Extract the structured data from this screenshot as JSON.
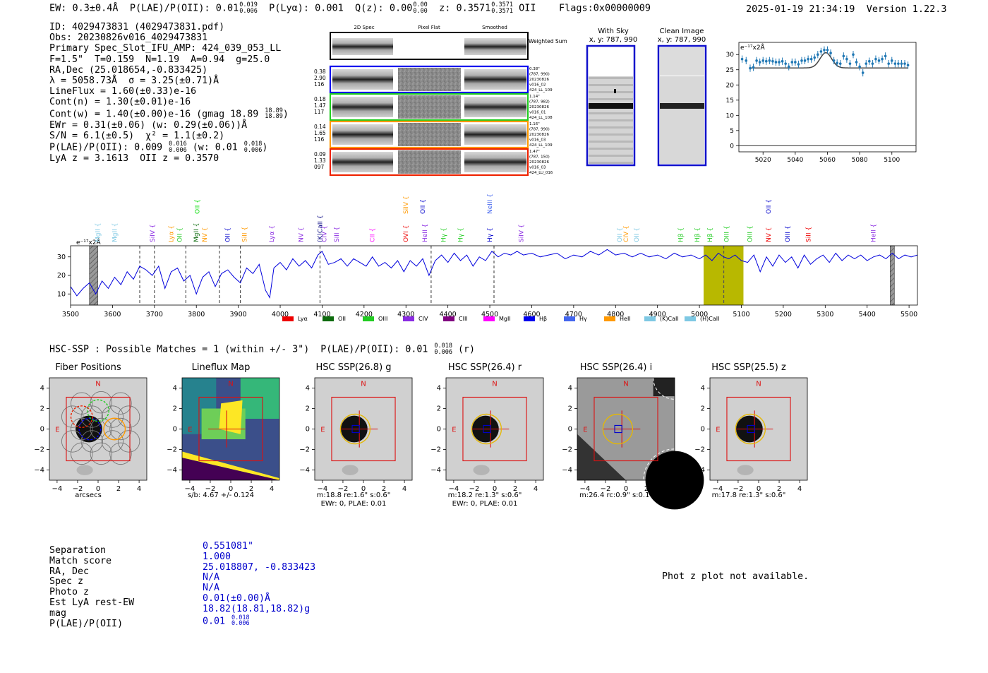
{
  "header": {
    "ew": "EW: 0.3±0.4Å",
    "plae_label": "P(LAE)/P(OII): 0.01",
    "plae_hi": "0.019",
    "plae_lo": "0.006",
    "plya": "P(Lyα): 0.001",
    "qz_label": "Q(z): 0.00",
    "qz_hi": "0.00",
    "qz_lo": "0.00",
    "z_label": "z: 0.3571",
    "z_hi": "0.3571",
    "z_lo": "0.3571",
    "z_line": "OII",
    "flags": "Flags:0x00000009",
    "datetime": "2025-01-19 21:34:19",
    "version": "Version 1.22.3"
  },
  "info": {
    "id": "ID: 4029473831 (4029473831.pdf)",
    "obs": "Obs: 20230826v016_4029473831",
    "primary": "Primary Spec_Slot_IFU_AMP: 424_039_053_LL",
    "params": "F=1.5\"  T=0.159  N=1.19  A=0.94  g=25.0",
    "radec": "RA,Dec (25.018654,-0.833425)",
    "lambda": "λ = 5058.73Å  σ = 3.25(±0.71)Å",
    "lineflux": "LineFlux = 1.60(±0.33)e-16",
    "contn": "Cont(n) = 1.30(±0.01)e-16",
    "contw": "Cont(w) = 1.40(±0.00)e-16 (gmag 18.89",
    "contw_hi": "18.89",
    "contw_lo": "18.89",
    "ewr": "EWr = 0.31(±0.06) (w: 0.29(±0.06))Å",
    "sn": "S/N = 6.1(±0.5)  χ² = 1.1(±0.2)",
    "plae": "P(LAE)/P(OII): 0.009",
    "plae_hi": "0.016",
    "plae_lo": "0.006",
    "plae_w": "(w: 0.01",
    "plae_w_hi": "0.018",
    "plae_w_lo": "0.006",
    "lya": "LyA z = 3.1613  OII z = 0.3570"
  },
  "stamps": {
    "headers": [
      "2D Spec",
      "Pixel Flat",
      "Smoothed"
    ],
    "weighted": "Weighted Sum",
    "rows": [
      {
        "nums": [
          "0.38",
          "2.90",
          "116"
        ],
        "color": "#0000ee",
        "meta": [
          "0.38\"",
          "(787, 990)",
          "20230826",
          "v016_02",
          "424_LL_109"
        ]
      },
      {
        "nums": [
          "0.18",
          "1.47",
          "117"
        ],
        "color": "#22cc22",
        "meta": [
          "1.14\"",
          "(787, 982)",
          "20230826",
          "v016_01",
          "424_LL_108"
        ]
      },
      {
        "nums": [
          "0.14",
          "1.65",
          "116"
        ],
        "color": "#ff9900",
        "meta": [
          "1.16\"",
          "(787, 990)",
          "20230826",
          "v016_03",
          "424_LL_109"
        ]
      },
      {
        "nums": [
          "0.09",
          "1.33",
          "097"
        ],
        "color": "#ee2200",
        "meta": [
          "1.47\"",
          "(787, 150)",
          "20230826",
          "v016_03",
          "424_LU_016"
        ]
      }
    ]
  },
  "fiber_panels": {
    "with_sky": "With Sky",
    "clean": "Clean Image",
    "coords": "x, y: 787, 990"
  },
  "zoom_chart": {
    "type": "scatter",
    "ylabel": "e⁻¹⁷x2Å",
    "xlim": [
      5005,
      5115
    ],
    "ylim": [
      -2,
      34
    ],
    "xticks": [
      5020,
      5040,
      5060,
      5080,
      5100
    ],
    "yticks": [
      0,
      5,
      10,
      15,
      20,
      25,
      30
    ],
    "points": [
      [
        5007,
        28.5
      ],
      [
        5009.5,
        28
      ],
      [
        5012,
        25.5
      ],
      [
        5014,
        25.8
      ],
      [
        5016,
        28
      ],
      [
        5018,
        27.5
      ],
      [
        5020,
        28
      ],
      [
        5022,
        27.8
      ],
      [
        5024,
        28
      ],
      [
        5026,
        27.8
      ],
      [
        5028,
        27.5
      ],
      [
        5030,
        27.5
      ],
      [
        5032,
        27.8
      ],
      [
        5034,
        27
      ],
      [
        5036,
        26
      ],
      [
        5038,
        27.5
      ],
      [
        5040,
        27.5
      ],
      [
        5042,
        26.8
      ],
      [
        5044,
        28
      ],
      [
        5046,
        28
      ],
      [
        5048,
        28.5
      ],
      [
        5050,
        28.5
      ],
      [
        5052,
        29
      ],
      [
        5054,
        30
      ],
      [
        5056,
        31
      ],
      [
        5058,
        31.5
      ],
      [
        5060,
        31.5
      ],
      [
        5062,
        30.5
      ],
      [
        5064,
        28
      ],
      [
        5066,
        27.2
      ],
      [
        5068,
        27
      ],
      [
        5070,
        29.5
      ],
      [
        5072,
        28.5
      ],
      [
        5074,
        27
      ],
      [
        5076,
        30
      ],
      [
        5078,
        27.5
      ],
      [
        5080,
        26
      ],
      [
        5082,
        24
      ],
      [
        5084,
        27
      ],
      [
        5086,
        27.8
      ],
      [
        5088,
        27
      ],
      [
        5090,
        28.5
      ],
      [
        5092,
        28
      ],
      [
        5094,
        28.5
      ],
      [
        5096,
        29.5
      ],
      [
        5098,
        27
      ],
      [
        5100,
        28
      ],
      [
        5102,
        27
      ],
      [
        5104,
        27
      ],
      [
        5106,
        27
      ],
      [
        5108,
        27
      ],
      [
        5110,
        26.5
      ]
    ],
    "fit": {
      "continuum": 25.6,
      "peak": 30.6,
      "center": 5059,
      "sigma": 3.6
    }
  },
  "main_chart": {
    "type": "line",
    "ylabel": "e⁻¹⁷x2Å",
    "xlim": [
      3500,
      5520
    ],
    "ylim": [
      4,
      36
    ],
    "xticks": [
      3500,
      3600,
      3700,
      3800,
      3900,
      4000,
      4100,
      4200,
      4300,
      4400,
      4500,
      4600,
      4700,
      4800,
      4900,
      5000,
      5100,
      5200,
      5300,
      5400,
      5500
    ],
    "yticks": [
      10,
      20,
      30
    ],
    "spectrum": [
      [
        3500,
        14
      ],
      [
        3515,
        9
      ],
      [
        3530,
        13
      ],
      [
        3545,
        16
      ],
      [
        3560,
        10
      ],
      [
        3575,
        17
      ],
      [
        3590,
        13
      ],
      [
        3605,
        19
      ],
      [
        3620,
        15
      ],
      [
        3635,
        22
      ],
      [
        3650,
        18
      ],
      [
        3665,
        25
      ],
      [
        3680,
        23
      ],
      [
        3695,
        20
      ],
      [
        3710,
        25
      ],
      [
        3725,
        13
      ],
      [
        3740,
        22
      ],
      [
        3755,
        24
      ],
      [
        3770,
        17
      ],
      [
        3785,
        20
      ],
      [
        3800,
        10
      ],
      [
        3815,
        19
      ],
      [
        3830,
        22
      ],
      [
        3845,
        14
      ],
      [
        3860,
        21
      ],
      [
        3875,
        23
      ],
      [
        3890,
        19
      ],
      [
        3905,
        16
      ],
      [
        3920,
        24
      ],
      [
        3935,
        21
      ],
      [
        3950,
        26
      ],
      [
        3965,
        12
      ],
      [
        3975,
        8
      ],
      [
        3985,
        24
      ],
      [
        4000,
        27
      ],
      [
        4015,
        23
      ],
      [
        4030,
        29
      ],
      [
        4045,
        25
      ],
      [
        4060,
        28
      ],
      [
        4075,
        24
      ],
      [
        4090,
        31
      ],
      [
        4100,
        33
      ],
      [
        4115,
        26
      ],
      [
        4130,
        27
      ],
      [
        4145,
        29
      ],
      [
        4160,
        25
      ],
      [
        4175,
        29
      ],
      [
        4190,
        27
      ],
      [
        4205,
        25
      ],
      [
        4220,
        30
      ],
      [
        4235,
        25
      ],
      [
        4250,
        27
      ],
      [
        4265,
        24
      ],
      [
        4280,
        28
      ],
      [
        4295,
        22
      ],
      [
        4310,
        28
      ],
      [
        4325,
        25
      ],
      [
        4340,
        29
      ],
      [
        4355,
        20
      ],
      [
        4370,
        28
      ],
      [
        4385,
        31
      ],
      [
        4400,
        27
      ],
      [
        4415,
        32
      ],
      [
        4430,
        28
      ],
      [
        4445,
        31
      ],
      [
        4460,
        25
      ],
      [
        4475,
        30
      ],
      [
        4490,
        28
      ],
      [
        4505,
        33
      ],
      [
        4520,
        30
      ],
      [
        4535,
        32
      ],
      [
        4550,
        31
      ],
      [
        4565,
        33
      ],
      [
        4580,
        31
      ],
      [
        4600,
        32
      ],
      [
        4620,
        30
      ],
      [
        4640,
        31
      ],
      [
        4660,
        32
      ],
      [
        4680,
        29
      ],
      [
        4700,
        31
      ],
      [
        4720,
        30
      ],
      [
        4740,
        33
      ],
      [
        4760,
        31
      ],
      [
        4780,
        34
      ],
      [
        4800,
        31
      ],
      [
        4820,
        32
      ],
      [
        4840,
        30
      ],
      [
        4860,
        32
      ],
      [
        4880,
        30
      ],
      [
        4900,
        31
      ],
      [
        4920,
        29
      ],
      [
        4940,
        32
      ],
      [
        4960,
        30
      ],
      [
        4980,
        31
      ],
      [
        5000,
        29
      ],
      [
        5015,
        31
      ],
      [
        5030,
        28
      ],
      [
        5045,
        32
      ],
      [
        5058,
        30
      ],
      [
        5070,
        29
      ],
      [
        5085,
        31
      ],
      [
        5100,
        28
      ],
      [
        5115,
        27
      ],
      [
        5130,
        31
      ],
      [
        5145,
        22
      ],
      [
        5160,
        30
      ],
      [
        5175,
        25
      ],
      [
        5190,
        31
      ],
      [
        5205,
        27
      ],
      [
        5220,
        30
      ],
      [
        5235,
        24
      ],
      [
        5250,
        31
      ],
      [
        5265,
        26
      ],
      [
        5280,
        29
      ],
      [
        5295,
        31
      ],
      [
        5310,
        27
      ],
      [
        5325,
        32
      ],
      [
        5340,
        28
      ],
      [
        5355,
        31
      ],
      [
        5370,
        29
      ],
      [
        5385,
        31
      ],
      [
        5400,
        28
      ],
      [
        5415,
        30
      ],
      [
        5430,
        31
      ],
      [
        5445,
        29
      ],
      [
        5460,
        32
      ],
      [
        5475,
        29
      ],
      [
        5490,
        31
      ],
      [
        5505,
        30
      ],
      [
        5520,
        31
      ]
    ],
    "hatched": [
      [
        3545,
        3565
      ],
      [
        5455,
        5465
      ]
    ],
    "highlight": [
      5010,
      5105
    ],
    "dashed": [
      3665,
      3700,
      3775,
      3855,
      3905,
      4095,
      4360,
      4510,
      5058
    ],
    "lines": [
      {
        "label": "MgII",
        "x": 3570,
        "color": "#7ec8e3",
        "row": 3
      },
      {
        "label": "MgII",
        "x": 3610,
        "color": "#7ec8e3",
        "row": 3
      },
      {
        "label": "SiIV",
        "x": 3700,
        "color": "#8a2be2",
        "row": 3
      },
      {
        "label": "Lyα",
        "x": 3745,
        "color": "#ff9900",
        "row": 3
      },
      {
        "label": "OII",
        "x": 3765,
        "color": "#22cc22",
        "row": 3
      },
      {
        "label": "MgII",
        "x": 3805,
        "color": "#0d6b0d",
        "row": 3
      },
      {
        "label": "OII",
        "x": 3807,
        "color": "#00dd00",
        "row": 0
      },
      {
        "label": "NV",
        "x": 3825,
        "color": "#ff9900",
        "row": 3
      },
      {
        "label": "OII",
        "x": 3880,
        "color": "#0000cc",
        "row": 3
      },
      {
        "label": "SiII",
        "x": 3920,
        "color": "#ff9900",
        "row": 3
      },
      {
        "label": "Lyα",
        "x": 3985,
        "color": "#8a2be2",
        "row": 3
      },
      {
        "label": "NV",
        "x": 4055,
        "color": "#8a2be2",
        "row": 3
      },
      {
        "label": "(K)CaII",
        "x": 4100,
        "color": "#000080",
        "row": 3
      },
      {
        "label": "CIV",
        "x": 4110,
        "color": "#8a2be2",
        "row": 3
      },
      {
        "label": "SiII",
        "x": 4140,
        "color": "#8a2be2",
        "row": 3
      },
      {
        "label": "CII",
        "x": 4225,
        "color": "#ff00ff",
        "row": 3
      },
      {
        "label": "OVI",
        "x": 4305,
        "color": "#ee0000",
        "row": 3
      },
      {
        "label": "SiIV",
        "x": 4305,
        "color": "#ff9900",
        "row": 0
      },
      {
        "label": "HeII",
        "x": 4350,
        "color": "#8a2be2",
        "row": 3
      },
      {
        "label": "OII",
        "x": 4345,
        "color": "#0000cc",
        "row": 0
      },
      {
        "label": "Hγ",
        "x": 4395,
        "color": "#22cc22",
        "row": 3
      },
      {
        "label": "Hγ",
        "x": 4435,
        "color": "#22cc22",
        "row": 3
      },
      {
        "label": "NeIII",
        "x": 4505,
        "color": "#4466ee",
        "row": 0
      },
      {
        "label": "Hγ",
        "x": 4505,
        "color": "#0000cc",
        "row": 3
      },
      {
        "label": "SiIV",
        "x": 4580,
        "color": "#8a2be2",
        "row": 3
      },
      {
        "label": "OII",
        "x": 4815,
        "color": "#7ec8e3",
        "row": 3
      },
      {
        "label": "CIV",
        "x": 4830,
        "color": "#ff9900",
        "row": 3
      },
      {
        "label": "OII",
        "x": 4855,
        "color": "#7ec8e3",
        "row": 3
      },
      {
        "label": "Hβ",
        "x": 4960,
        "color": "#22cc22",
        "row": 3
      },
      {
        "label": "Hβ",
        "x": 5000,
        "color": "#22cc22",
        "row": 3
      },
      {
        "label": "Hβ",
        "x": 5030,
        "color": "#22cc22",
        "row": 3
      },
      {
        "label": "OIII",
        "x": 5070,
        "color": "#22cc22",
        "row": 3
      },
      {
        "label": "OIII",
        "x": 5125,
        "color": "#22cc22",
        "row": 3
      },
      {
        "label": "NV",
        "x": 5170,
        "color": "#ee0000",
        "row": 3
      },
      {
        "label": "OII",
        "x": 5170,
        "color": "#0000cc",
        "row": 0
      },
      {
        "label": "OIII",
        "x": 5215,
        "color": "#0000cc",
        "row": 3
      },
      {
        "label": "SiII",
        "x": 5265,
        "color": "#ee0000",
        "row": 3
      },
      {
        "label": "HeII",
        "x": 5420,
        "color": "#8a2be2",
        "row": 3
      }
    ],
    "legend": [
      {
        "label": "Lyα",
        "color": "#ee0000"
      },
      {
        "label": "OII",
        "color": "#0d6b0d"
      },
      {
        "label": "OIII",
        "color": "#22cc22"
      },
      {
        "label": "CIV",
        "color": "#8a2be2"
      },
      {
        "label": "CIII",
        "color": "#800080"
      },
      {
        "label": "MgII",
        "color": "#ff00ff"
      },
      {
        "label": "Hβ",
        "color": "#0000ee"
      },
      {
        "label": "Hγ",
        "color": "#4466ee"
      },
      {
        "label": "HeII",
        "color": "#ff9900"
      },
      {
        "label": "(K)CaII",
        "color": "#7ec8e3"
      },
      {
        "label": "(H)CaII",
        "color": "#7ec8e3"
      }
    ]
  },
  "hsc": {
    "summary": "HSC-SSP : Possible Matches = 1 (within +/- 3\")  P(LAE)/P(OII): 0.01",
    "summary_hi": "0.018",
    "summary_lo": "0.006",
    "summary_tail": "(r)",
    "panels": [
      {
        "title": "Fiber Positions",
        "cap1": "arcsecs",
        "cap2": ""
      },
      {
        "title": "Lineflux Map",
        "cap1": "s/b: 4.67 +/- 0.124",
        "cap2": ""
      },
      {
        "title": "HSC SSP(26.8) g",
        "cap1": "m:18.8  re:1.6\"  s:0.6\"",
        "cap2": "EWr: 0, PLAE: 0.01"
      },
      {
        "title": "HSC SSP(26.4) r",
        "cap1": "m:18.2  re:1.3\"  s:0.6\"",
        "cap2": "EWr: 0, PLAE: 0.01"
      },
      {
        "title": "HSC SSP(26.4) i",
        "cap1": "m:26.4 rc:0.9\"  s:0.1\"",
        "cap2": ""
      },
      {
        "title": "HSC SSP(25.5) z",
        "cap1": "m:17.8  re:1.3\"  s:0.6\"",
        "cap2": ""
      }
    ],
    "ticks": [
      "−4",
      "−2",
      "0",
      "2",
      "4"
    ],
    "north": "N",
    "east": "E"
  },
  "separation": {
    "keys": [
      "Separation",
      "Match score",
      "RA, Dec",
      "Spec z",
      "Photo z",
      "Est LyA rest-EW",
      "mag",
      "P(LAE)/P(OII)"
    ],
    "values": [
      "0.551081\"",
      "1.000",
      "25.018807, -0.833423",
      "N/A",
      "N/A",
      "0.01(±0.00)Å",
      "18.82(18.81,18.82)g",
      "0.01"
    ],
    "plae_hi": "0.018",
    "plae_lo": "0.006",
    "phot_z": "Phot z plot not available."
  }
}
